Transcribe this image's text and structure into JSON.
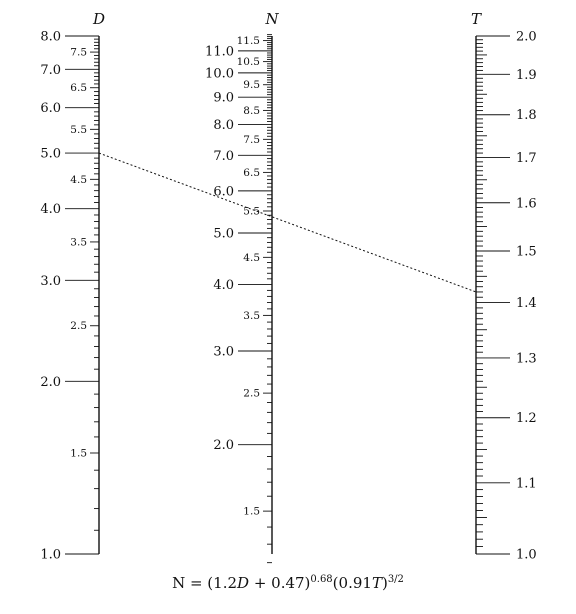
{
  "nomogram": {
    "formula": "N = (1.2D + 0.47)^0.68 (0.91T)^3/2",
    "formula_parts": {
      "lhs": "N = (1.2",
      "d": "D",
      "mid": " + 0.47)",
      "exp1": "0.68",
      "mid2": "(0.91",
      "t": "T",
      "close": ")",
      "exp2": "3/2"
    },
    "scales": {
      "D": {
        "title": "D",
        "labels_left": true,
        "major_labels": [
          "1.0",
          "2.0",
          "3.0",
          "4.0",
          "5.0",
          "6.0",
          "7.0",
          "8.0"
        ],
        "minor_labels": [
          "1.5",
          "2.5",
          "3.5",
          "4.5",
          "5.5",
          "6.5",
          "7.5"
        ]
      },
      "N": {
        "title": "N",
        "labels_left": true,
        "major_labels": [
          "2.0",
          "3.0",
          "4.0",
          "5.0",
          "6.0",
          "7.0",
          "8.0",
          "9.0",
          "10.0",
          "11.0"
        ],
        "minor_labels": [
          "1.5",
          "2.5",
          "3.5",
          "4.5",
          "5.5",
          "6.5",
          "7.5",
          "8.5",
          "9.5",
          "10.5",
          "11.5"
        ]
      },
      "T": {
        "title": "T",
        "labels_left": false,
        "major_labels": [
          "1.0",
          "1.1",
          "1.2",
          "1.3",
          "1.4",
          "1.5",
          "1.6",
          "1.7",
          "1.8",
          "1.9",
          "2.0"
        ],
        "minor_labels": []
      }
    },
    "index_line": {
      "D": 5.0,
      "T": 1.42
    }
  }
}
